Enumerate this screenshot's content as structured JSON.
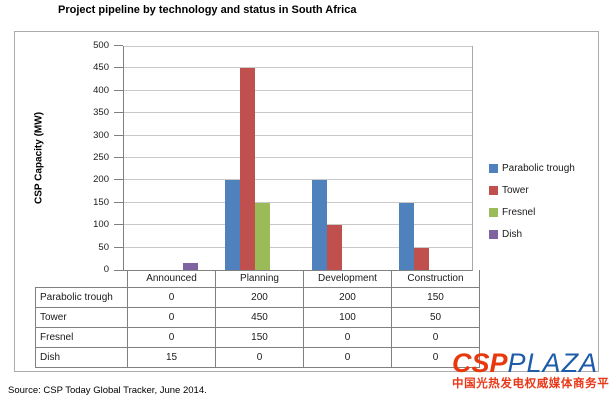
{
  "page": {
    "title": "Project pipeline by technology and status in South Africa",
    "source_note": "Source: CSP Today Global Tracker, June 2014."
  },
  "logo": {
    "csp": "CSP",
    "plaza": "PLAZA",
    "tagline": "中国光热发电权威媒体商务平台",
    "csp_color": "#e8380d",
    "plaza_color": "#1d5ca8",
    "tagline_color": "#e8391a"
  },
  "chart_data": {
    "type": "bar",
    "title": "Project pipeline by technology and status in South Africa",
    "xlabel": "",
    "ylabel": "CSP Capacity (MW)",
    "categories": [
      "Announced",
      "Planning",
      "Development",
      "Construction"
    ],
    "series": [
      {
        "name": "Parabolic trough",
        "color": "#4F81BD",
        "values": [
          0,
          200,
          200,
          150
        ]
      },
      {
        "name": "Tower",
        "color": "#C0504D",
        "values": [
          0,
          450,
          100,
          50
        ]
      },
      {
        "name": "Fresnel",
        "color": "#9BBB59",
        "values": [
          0,
          150,
          0,
          0
        ]
      },
      {
        "name": "Dish",
        "color": "#8064A2",
        "values": [
          15,
          0,
          0,
          0
        ]
      }
    ],
    "ylim": [
      0,
      500
    ],
    "ytick_step": 50,
    "grid": true,
    "legend_position": "right",
    "data_table_shown": true
  }
}
